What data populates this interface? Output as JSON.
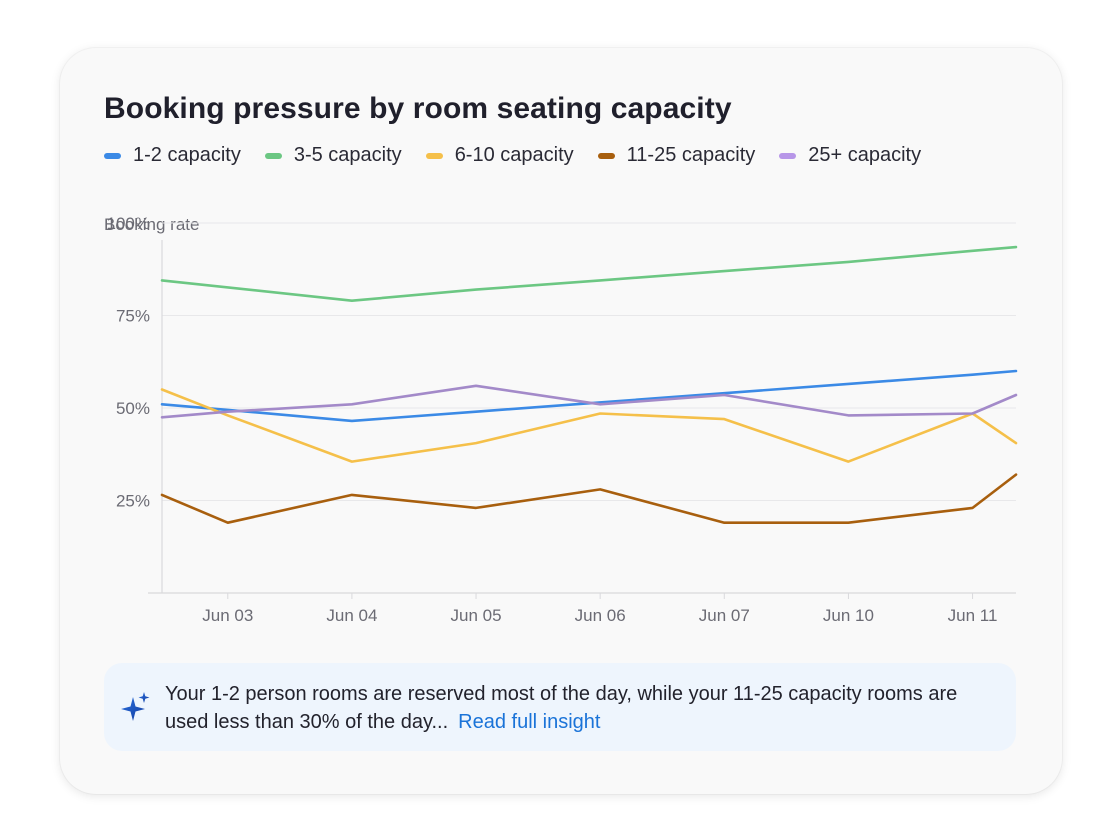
{
  "card": {
    "title": "Booking pressure by room seating capacity"
  },
  "insight": {
    "text": "Your 1-2 person rooms are reserved most of the day, while your 11-25 capacity rooms are used less than 30% of the day...",
    "link_label": "Read full insight",
    "icon": "sparkle-icon"
  },
  "chart_data": {
    "type": "line",
    "title": "Booking pressure by room seating capacity",
    "ylabel": "Booking rate",
    "xlabel": "",
    "categories": [
      "Jun 03",
      "Jun 04",
      "Jun 05",
      "Jun 06",
      "Jun 07",
      "Jun 10",
      "Jun 11"
    ],
    "x_extent": [
      -0.53,
      6.35
    ],
    "ylim": [
      0,
      110
    ],
    "yticks": [
      25,
      50,
      75,
      100
    ],
    "ytick_labels": [
      "25%",
      "50%",
      "75%",
      "100%"
    ],
    "grid": true,
    "legend_position": "top-left",
    "series": [
      {
        "name": "1-2 capacity",
        "color": "#3b8ae6",
        "points": [
          [
            -0.53,
            51
          ],
          [
            0,
            49.5
          ],
          [
            1,
            46.5
          ],
          [
            2,
            49
          ],
          [
            3,
            51.5
          ],
          [
            4,
            54
          ],
          [
            5,
            56.5
          ],
          [
            6,
            59
          ],
          [
            6.35,
            60
          ]
        ]
      },
      {
        "name": "3-5 capacity",
        "color": "#6cc783",
        "points": [
          [
            -0.53,
            84.5
          ],
          [
            1,
            79
          ],
          [
            2,
            82
          ],
          [
            3,
            84.5
          ],
          [
            4,
            87
          ],
          [
            5,
            89.5
          ],
          [
            6,
            92.5
          ],
          [
            6.35,
            93.5
          ]
        ]
      },
      {
        "name": "6-10 capacity",
        "color": "#f5c04a",
        "points": [
          [
            -0.53,
            55
          ],
          [
            0,
            48
          ],
          [
            1,
            35.5
          ],
          [
            2,
            40.5
          ],
          [
            3,
            48.5
          ],
          [
            4,
            47
          ],
          [
            5,
            35.5
          ],
          [
            6,
            48.5
          ],
          [
            6.35,
            40.5
          ]
        ]
      },
      {
        "name": "11-25 capacity",
        "color": "#a85f0e",
        "points": [
          [
            -0.53,
            26.5
          ],
          [
            0,
            19
          ],
          [
            1,
            26.5
          ],
          [
            2,
            23
          ],
          [
            3,
            28
          ],
          [
            4,
            19
          ],
          [
            5,
            19
          ],
          [
            6,
            23
          ],
          [
            6.35,
            32
          ]
        ]
      },
      {
        "name": "25+ capacity",
        "color": "#b796e8",
        "line_color": "#a38ac9",
        "points": [
          [
            -0.53,
            47.5
          ],
          [
            0,
            49
          ],
          [
            1,
            51
          ],
          [
            2,
            56
          ],
          [
            3,
            51
          ],
          [
            4,
            53.5
          ],
          [
            5,
            48
          ],
          [
            6,
            48.5
          ],
          [
            6.35,
            53.5
          ]
        ]
      }
    ]
  }
}
